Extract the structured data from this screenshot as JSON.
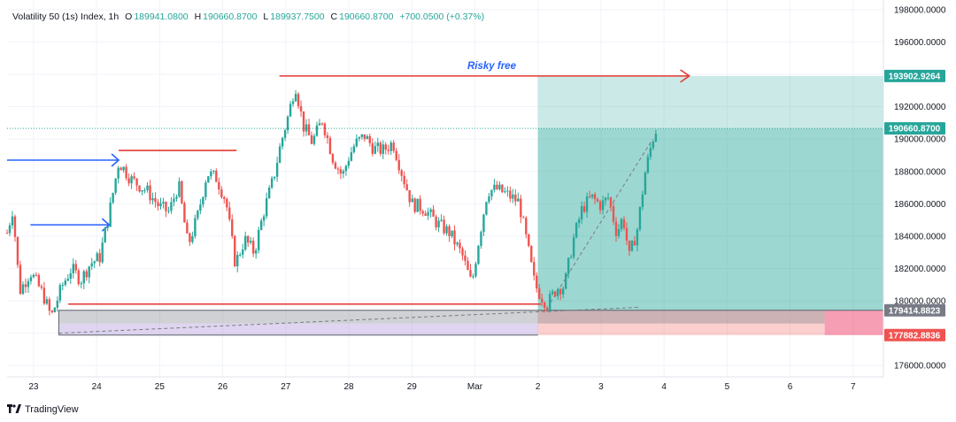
{
  "legend": {
    "symbol": "Volatility 50 (1s) Index, 1h",
    "open_label": "O",
    "open": "189941.0800",
    "high_label": "H",
    "high": "190660.8700",
    "low_label": "L",
    "low": "189937.7500",
    "close_label": "C",
    "close": "190660.8700",
    "change": "+700.0500 (+0.37%)"
  },
  "annotation": {
    "text": "Risky free",
    "color": "#2962ff"
  },
  "brand": {
    "logo": "tv-logo-icon",
    "name": "TradingView"
  },
  "colors": {
    "up": "#26a69a",
    "down": "#ef5350",
    "tp_zone": "#26a69a",
    "sl_zone": "#ef5350",
    "line": "#e53935",
    "arrow": "#2962ff"
  },
  "chart_data": {
    "type": "candlestick",
    "title": "Volatility 50 (1s) Index, 1h",
    "y_ticks": [
      "198000.0000",
      "196000.0000",
      "194000.0000",
      "192000.0000",
      "190000.0000",
      "188000.0000",
      "186000.0000",
      "184000.0000",
      "182000.0000",
      "180000.0000",
      "178000.0000",
      "176000.0000"
    ],
    "y_tick_values": [
      198000,
      196000,
      194000,
      192000,
      190000,
      188000,
      186000,
      184000,
      182000,
      180000,
      178000,
      176000
    ],
    "ylim": [
      175300,
      198600
    ],
    "x_ticks": [
      "23",
      "24",
      "25",
      "26",
      "27",
      "28",
      "29",
      "Mar",
      "2",
      "3",
      "4",
      "5",
      "6",
      "7"
    ],
    "x_tick_days": [
      0,
      1,
      2,
      3,
      4,
      5,
      6,
      7,
      8,
      9,
      10,
      11,
      12,
      13
    ],
    "xlim": [
      -0.42,
      13.48
    ],
    "price_labels": [
      {
        "label": "193902.9264",
        "value": 193902.9264,
        "bg": "#26a69a",
        "fg": "#ffffff"
      },
      {
        "label": "190660.8700",
        "value": 190660.87,
        "bg": "#26a69a",
        "fg": "#ffffff"
      },
      {
        "label": "179414.8823",
        "value": 179414.8823,
        "bg": "#787b86",
        "fg": "#ffffff"
      },
      {
        "label": "177882.8836",
        "value": 177882.8836,
        "bg": "#ef5350",
        "fg": "#ffffff"
      }
    ],
    "keypoints": [
      [
        -0.42,
        184200
      ],
      [
        -0.33,
        185700
      ],
      [
        -0.22,
        180600
      ],
      [
        -0.05,
        181800
      ],
      [
        0.15,
        180400
      ],
      [
        0.28,
        179000
      ],
      [
        0.45,
        180900
      ],
      [
        0.6,
        182000
      ],
      [
        0.75,
        181300
      ],
      [
        0.9,
        182300
      ],
      [
        1.05,
        182700
      ],
      [
        1.2,
        185400
      ],
      [
        1.35,
        188600
      ],
      [
        1.55,
        187500
      ],
      [
        1.8,
        186800
      ],
      [
        2.0,
        185800
      ],
      [
        2.15,
        185500
      ],
      [
        2.3,
        187200
      ],
      [
        2.45,
        183400
      ],
      [
        2.6,
        185200
      ],
      [
        2.75,
        187900
      ],
      [
        2.9,
        187600
      ],
      [
        3.05,
        186200
      ],
      [
        3.2,
        182300
      ],
      [
        3.35,
        183800
      ],
      [
        3.5,
        183000
      ],
      [
        3.65,
        185500
      ],
      [
        3.8,
        187500
      ],
      [
        3.92,
        189700
      ],
      [
        4.05,
        191600
      ],
      [
        4.15,
        193400
      ],
      [
        4.28,
        190800
      ],
      [
        4.42,
        189800
      ],
      [
        4.58,
        191200
      ],
      [
        4.75,
        188800
      ],
      [
        4.9,
        187700
      ],
      [
        5.0,
        188900
      ],
      [
        5.1,
        189700
      ],
      [
        5.25,
        190200
      ],
      [
        5.4,
        189400
      ],
      [
        5.55,
        189300
      ],
      [
        5.7,
        189800
      ],
      [
        5.85,
        187800
      ],
      [
        6.0,
        186000
      ],
      [
        6.2,
        185700
      ],
      [
        6.4,
        184800
      ],
      [
        6.6,
        184200
      ],
      [
        6.8,
        182800
      ],
      [
        6.95,
        181000
      ],
      [
        7.05,
        183500
      ],
      [
        7.2,
        186800
      ],
      [
        7.35,
        186900
      ],
      [
        7.5,
        186600
      ],
      [
        7.7,
        186100
      ],
      [
        7.85,
        183100
      ],
      [
        7.95,
        181000
      ],
      [
        8.05,
        180300
      ],
      [
        8.15,
        179800
      ],
      [
        8.3,
        180800
      ],
      [
        8.42,
        180900
      ],
      [
        8.55,
        183600
      ],
      [
        8.7,
        185700
      ],
      [
        8.85,
        186400
      ],
      [
        9.0,
        185900
      ],
      [
        9.12,
        186400
      ],
      [
        9.25,
        184200
      ],
      [
        9.35,
        185200
      ],
      [
        9.45,
        182700
      ],
      [
        9.58,
        184500
      ],
      [
        9.7,
        187900
      ],
      [
        9.82,
        190000
      ],
      [
        9.88,
        190660
      ]
    ],
    "lines": [
      {
        "name": "range-high",
        "x0": 1.35,
        "x1": 3.22,
        "y": 189300,
        "color": "#e53935"
      },
      {
        "name": "support",
        "x0": 0.55,
        "x1": 8.05,
        "y": 179800,
        "color": "#e53935"
      },
      {
        "name": "risky-free-arrow",
        "x0": 3.9,
        "x1": 10.4,
        "y": 193903,
        "color": "#e53935",
        "arrow": true
      }
    ],
    "blue_arrows": [
      {
        "x0": -0.42,
        "x1": 1.35,
        "y": 188700
      },
      {
        "x0": -0.05,
        "x1": 1.2,
        "y": 184700
      }
    ],
    "zones": [
      {
        "name": "take-profit-zone-light",
        "x0": 8.0,
        "x1": 13.48,
        "y0": 190660,
        "y1": 193903,
        "color": "#26a69a",
        "opacity": 0.24
      },
      {
        "name": "take-profit-zone",
        "x0": 8.0,
        "x1": 13.48,
        "y0": 179415,
        "y1": 190660,
        "color": "#26a69a",
        "opacity": 0.45
      },
      {
        "name": "stop-loss-zone",
        "x0": 8.0,
        "x1": 13.48,
        "y0": 177883,
        "y1": 179415,
        "color": "#ef5350",
        "opacity": 0.28
      },
      {
        "name": "stop-loss-extension",
        "x0": 12.55,
        "x1": 13.48,
        "y0": 177883,
        "y1": 179415,
        "color": "#f06292",
        "opacity": 0.45
      },
      {
        "name": "demand-zone-gray",
        "x0": 0.4,
        "x1": 12.55,
        "y0": 178600,
        "y1": 179415,
        "color": "#787b86",
        "opacity": 0.35
      },
      {
        "name": "demand-zone-purple",
        "x0": 0.4,
        "x1": 8.0,
        "y0": 177883,
        "y1": 178600,
        "color": "#9575cd",
        "opacity": 0.3
      }
    ],
    "grid": true,
    "price_line": {
      "value": 190660.87,
      "color": "#26a69a"
    }
  }
}
